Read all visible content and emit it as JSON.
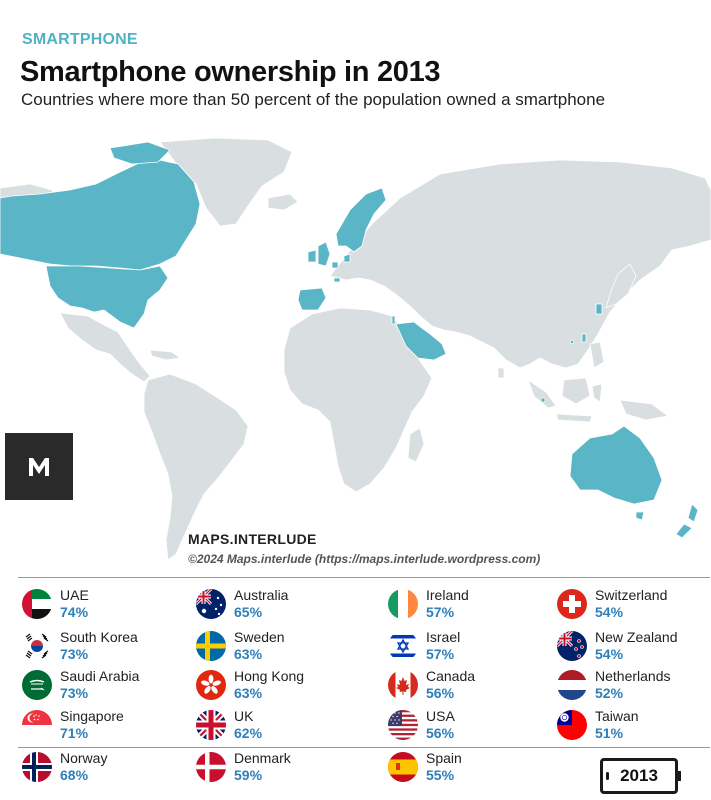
{
  "header": {
    "kicker": "SMARTPHONE",
    "title": "Smartphone ownership in 2013",
    "subtitle": "Countries where more than 50 percent of the population owned a smartphone"
  },
  "map": {
    "highlight_color": "#5ab5c6",
    "base_color": "#d9dee1",
    "border_color": "#ffffff"
  },
  "branding": {
    "brand": "MAPS.INTERLUDE",
    "credit": "©2024 Maps.interlude (https://maps.interlude.wordpress.com)"
  },
  "legend": [
    {
      "country": "UAE",
      "value": "74%",
      "flag": "uae-flag"
    },
    {
      "country": "Australia",
      "value": "65%",
      "flag": "australia-flag"
    },
    {
      "country": "Ireland",
      "value": "57%",
      "flag": "ireland-flag"
    },
    {
      "country": "Switzerland",
      "value": "54%",
      "flag": "switzerland-flag"
    },
    {
      "country": "South Korea",
      "value": "73%",
      "flag": "south-korea-flag"
    },
    {
      "country": "Sweden",
      "value": "63%",
      "flag": "sweden-flag"
    },
    {
      "country": "Israel",
      "value": "57%",
      "flag": "israel-flag"
    },
    {
      "country": "New Zealand",
      "value": "54%",
      "flag": "new-zealand-flag"
    },
    {
      "country": "Saudi Arabia",
      "value": "73%",
      "flag": "saudi-arabia-flag"
    },
    {
      "country": "Hong Kong",
      "value": "63%",
      "flag": "hong-kong-flag"
    },
    {
      "country": "Canada",
      "value": "56%",
      "flag": "canada-flag"
    },
    {
      "country": "Netherlands",
      "value": "52%",
      "flag": "netherlands-flag"
    },
    {
      "country": "Singapore",
      "value": "71%",
      "flag": "singapore-flag"
    },
    {
      "country": "UK",
      "value": "62%",
      "flag": "uk-flag"
    },
    {
      "country": "USA",
      "value": "56%",
      "flag": "usa-flag"
    },
    {
      "country": "Taiwan",
      "value": "51%",
      "flag": "taiwan-flag"
    },
    {
      "country": "Norway",
      "value": "68%",
      "flag": "norway-flag"
    },
    {
      "country": "Denmark",
      "value": "59%",
      "flag": "denmark-flag"
    },
    {
      "country": "Spain",
      "value": "55%",
      "flag": "spain-flag"
    }
  ],
  "year_badge": "2013"
}
